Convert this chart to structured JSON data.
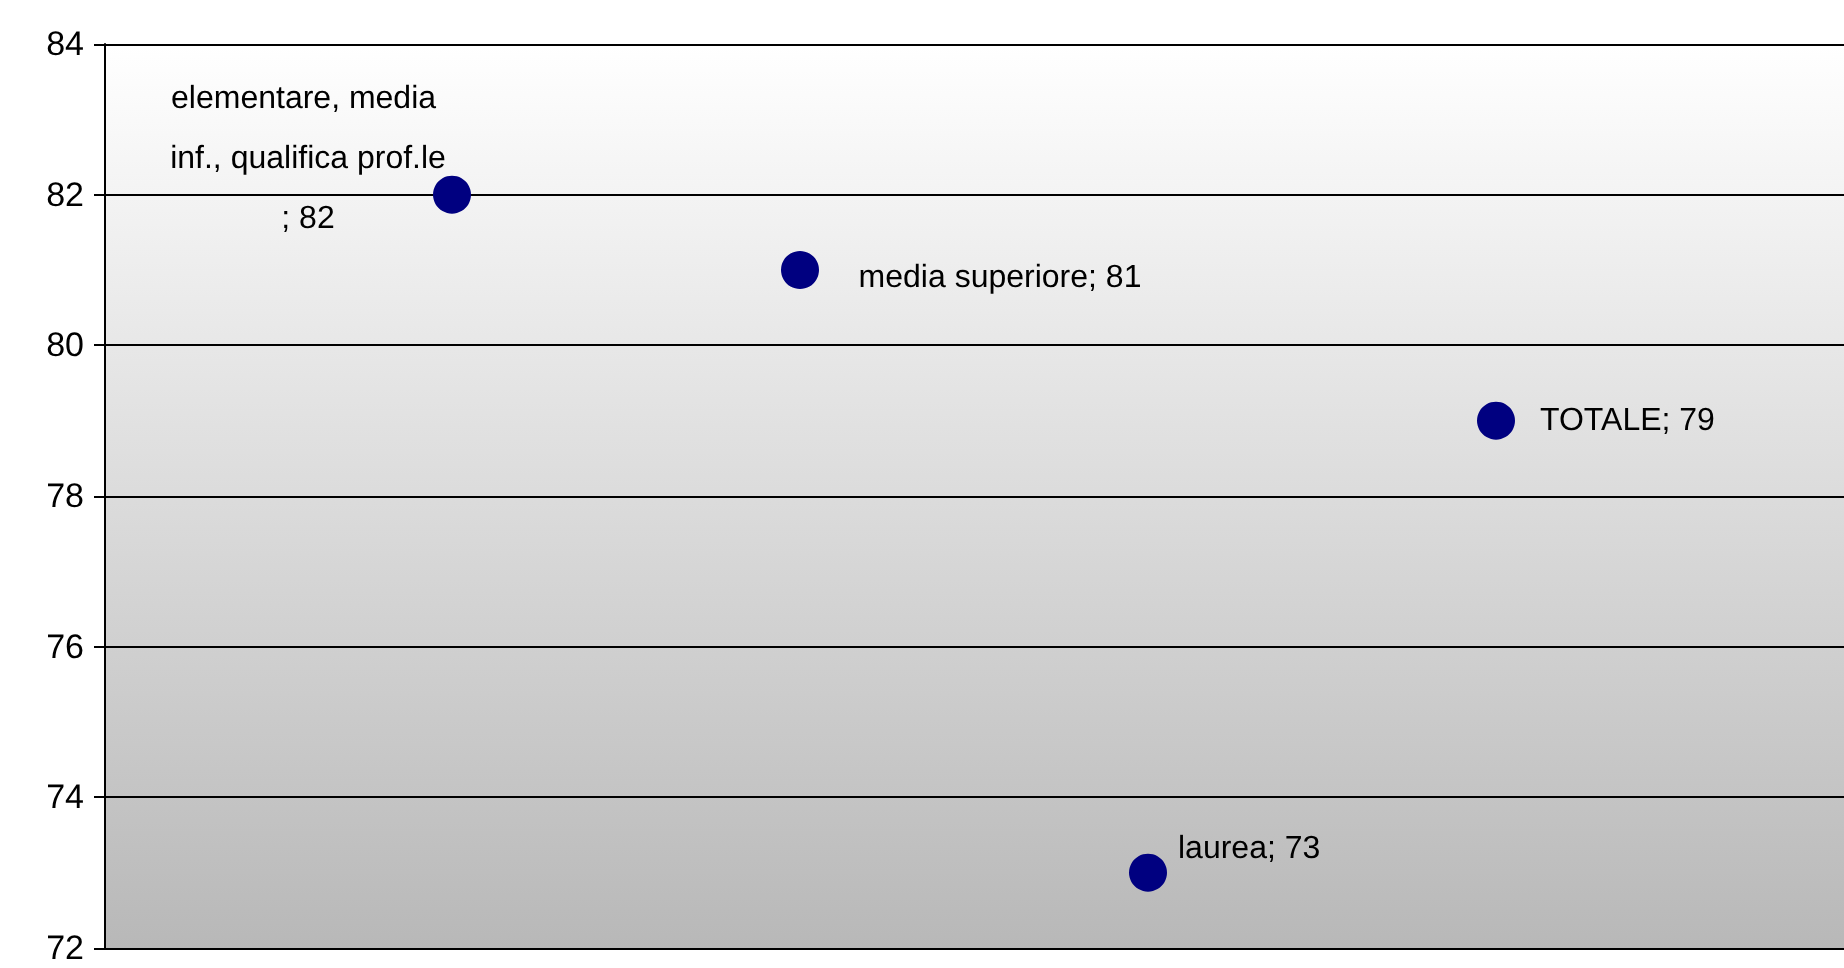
{
  "chart_data": {
    "type": "scatter",
    "categories": [
      null,
      null,
      null,
      null
    ],
    "values": [
      82,
      81,
      73,
      79
    ],
    "value_labels": [
      "elementare, media inf., qualifica prof.le; 82",
      "media superiore; 81",
      "laurea; 73",
      "TOTALE; 79"
    ],
    "color": "#000080",
    "marker": "circle",
    "tick_labels": "y",
    "ylim": [
      72,
      84
    ],
    "yticks": [
      72,
      74,
      76,
      78,
      80,
      82,
      84
    ],
    "grid": "y"
  }
}
